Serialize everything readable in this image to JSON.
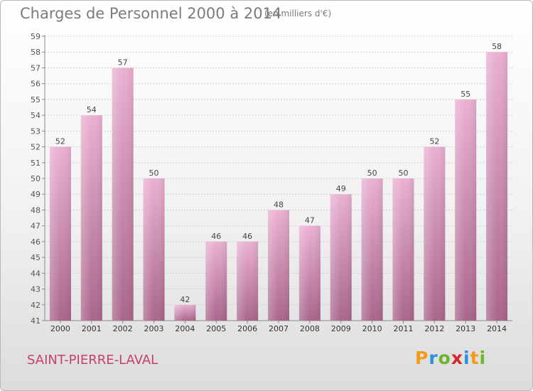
{
  "title": "Charges de Personnel 2000 à 2014",
  "subtitle": "(en milliers d'€)",
  "place": "SAINT-PIERRE-LAVAL",
  "logo": {
    "letters": [
      "P",
      "r",
      "o",
      "x",
      "i",
      "t",
      "i"
    ],
    "colors": [
      "#f39c1b",
      "#2d8fd5",
      "#6cb52d",
      "#d7262b",
      "#2d8fd5",
      "#f39c1b",
      "#6cb52d"
    ]
  },
  "colors": {
    "bar_light": "#eab0d2",
    "bar_dark": "#a9668c",
    "accent": "#c4416b"
  },
  "chart_data": {
    "type": "bar",
    "categories": [
      "2000",
      "2001",
      "2002",
      "2003",
      "2004",
      "2005",
      "2006",
      "2007",
      "2008",
      "2009",
      "2010",
      "2011",
      "2012",
      "2013",
      "2014"
    ],
    "values": [
      52,
      54,
      57,
      50,
      42,
      46,
      46,
      48,
      47,
      49,
      50,
      50,
      52,
      55,
      58
    ],
    "ylim": [
      41,
      59
    ],
    "yticks": [
      41,
      42,
      43,
      44,
      45,
      46,
      47,
      48,
      49,
      50,
      51,
      52,
      53,
      54,
      55,
      56,
      57,
      58,
      59
    ],
    "grid": true,
    "legend": "none"
  }
}
